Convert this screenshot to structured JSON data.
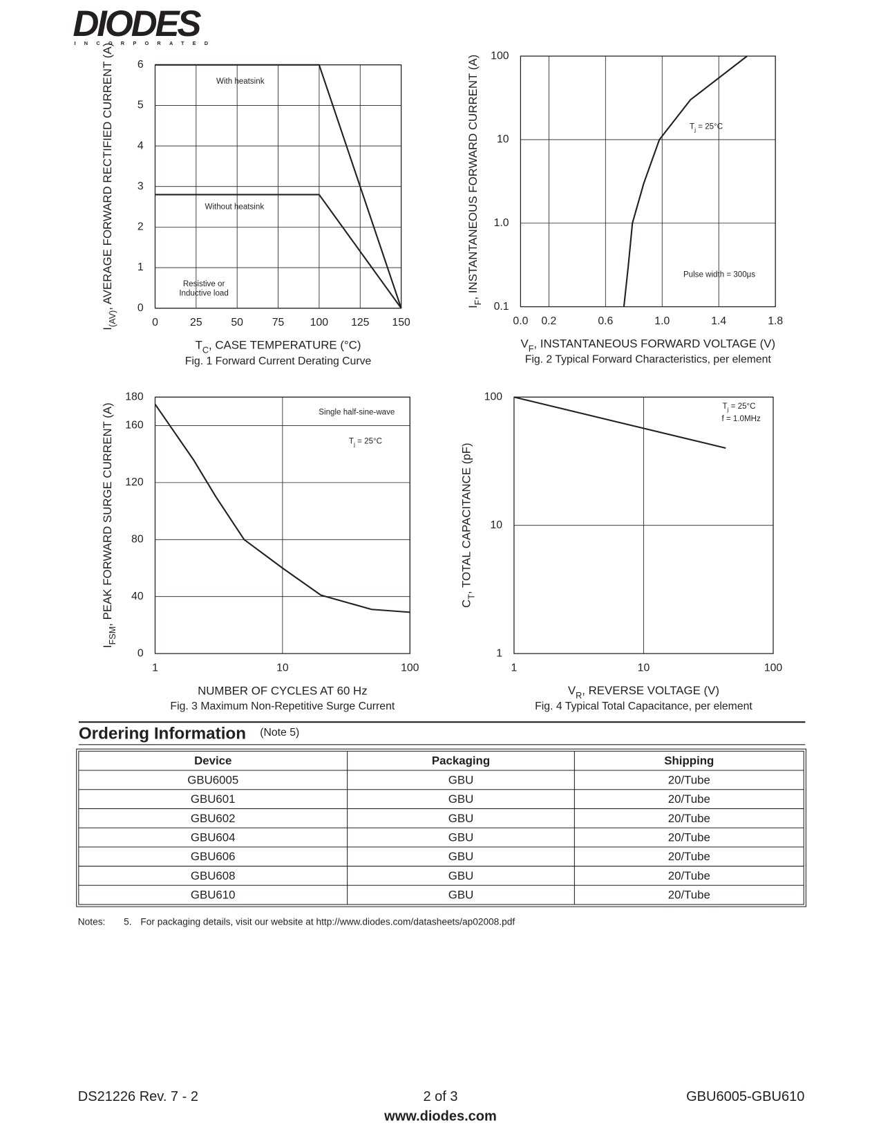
{
  "header": {
    "logo": "DIODES",
    "logo_sub": "INCORPORATED"
  },
  "chart_data": [
    {
      "type": "line",
      "xlabel": [
        "T",
        "C",
        ", CASE TEMPERATURE (°C)"
      ],
      "ylabel": [
        "I",
        "(AV)",
        ", AVERAGE FORWARD RECTIFIED CURRENT (A)"
      ],
      "caption": "Fig. 1  Forward Current Derating Curve",
      "xlim": [
        0,
        150
      ],
      "xticks": [
        0,
        25,
        50,
        75,
        100,
        125,
        150
      ],
      "ylim": [
        0,
        6
      ],
      "yticks": [
        0,
        1,
        2,
        3,
        4,
        5,
        6
      ],
      "grid": true,
      "series": [
        {
          "name": "With heatsink",
          "color": "#231f20",
          "x": [
            0,
            100,
            150
          ],
          "values": [
            6,
            6,
            0
          ]
        },
        {
          "name": "Without heatsink",
          "color": "#231f20",
          "x": [
            0,
            100,
            150
          ],
          "values": [
            2.8,
            2.8,
            0
          ]
        }
      ],
      "annotations": [
        "Resistive or",
        "Inductive load"
      ]
    },
    {
      "type": "line",
      "xlabel": [
        "V",
        "F",
        ", INSTANTANEOUS FORWARD VOLTAGE (V)"
      ],
      "ylabel": [
        "I",
        "F",
        ", INSTANTANEOUS FORWARD CURRENT (A)"
      ],
      "caption": "Fig. 2  Typical Forward Characteristics, per element",
      "xlim": [
        0,
        1.8
      ],
      "xticks": [
        {
          "value": 0,
          "label": "0.0"
        },
        0.2,
        0.6,
        {
          "value": 1,
          "label": "1.0"
        },
        1.4,
        1.8
      ],
      "ylim": [
        0.1,
        100
      ],
      "yticks": [
        0.1,
        {
          "value": 1,
          "label": "1.0"
        },
        10,
        100
      ],
      "ylog": true,
      "grid": true,
      "series": [
        {
          "color": "#231f20",
          "x": [
            0.73,
            0.76,
            0.79,
            0.87,
            0.98,
            1.2,
            1.6
          ],
          "values": [
            0.1,
            0.3,
            1,
            3,
            10,
            30,
            100
          ]
        }
      ],
      "annotations": [
        [
          "T",
          "j",
          " = 25°C"
        ],
        "Pulse width = 300μs"
      ]
    },
    {
      "type": "line",
      "xlabel": "NUMBER OF CYCLES AT 60 Hz",
      "ylabel": [
        "I",
        "FSM",
        ", PEAK FORWARD SURGE CURRENT (A)"
      ],
      "caption": "Fig. 3  Maximum Non-Repetitive Surge Current",
      "xlim": [
        1,
        100
      ],
      "xticks": [
        1,
        10,
        100
      ],
      "xlog": true,
      "ylim": [
        0,
        180
      ],
      "yticks": [
        0,
        40,
        80,
        120,
        160,
        180
      ],
      "grid": true,
      "series": [
        {
          "color": "#231f20",
          "x": [
            1,
            2,
            3,
            5,
            10,
            20,
            50,
            100
          ],
          "values": [
            175,
            136,
            110,
            80,
            60,
            41,
            31,
            29
          ]
        }
      ],
      "annotations": [
        "Single half-sine-wave",
        [
          "T",
          "j",
          " = 25°C"
        ]
      ]
    },
    {
      "type": "line",
      "xlabel": [
        "V",
        "R",
        ", REVERSE VOLTAGE (V)"
      ],
      "ylabel": [
        "C",
        "T",
        ", TOTAL CAPACITANCE (pF)"
      ],
      "caption": "Fig. 4  Typical Total Capacitance, per element",
      "xlim": [
        1,
        100
      ],
      "xticks": [
        1,
        10,
        100
      ],
      "xlog": true,
      "ylim": [
        1,
        100
      ],
      "yticks": [
        1,
        10,
        100
      ],
      "ylog": true,
      "grid": true,
      "series": [
        {
          "color": "#231f20",
          "x": [
            1,
            43
          ],
          "values": [
            100,
            40
          ]
        }
      ],
      "annotations": [
        [
          "T",
          "j",
          " = 25°C"
        ],
        "f = 1.0MHz"
      ]
    }
  ],
  "ordering": {
    "title": "Ordering Information",
    "note": "(Note 5)",
    "columns": [
      "Device",
      "Packaging",
      "Shipping"
    ],
    "rows": [
      [
        "GBU6005",
        "GBU",
        "20/Tube"
      ],
      [
        "GBU601",
        "GBU",
        "20/Tube"
      ],
      [
        "GBU602",
        "GBU",
        "20/Tube"
      ],
      [
        "GBU604",
        "GBU",
        "20/Tube"
      ],
      [
        "GBU606",
        "GBU",
        "20/Tube"
      ],
      [
        "GBU608",
        "GBU",
        "20/Tube"
      ],
      [
        "GBU610",
        "GBU",
        "20/Tube"
      ]
    ]
  },
  "notes": {
    "label": "Notes:",
    "items": [
      {
        "number": "5.",
        "text": "For packaging details, visit our website at http://www.diodes.com/datasheets/ap02008.pdf"
      }
    ]
  },
  "footer": {
    "left": "DS21226 Rev. 7 - 2",
    "center": "2 of 3",
    "right": "GBU6005-GBU610",
    "website": "www.diodes.com"
  }
}
